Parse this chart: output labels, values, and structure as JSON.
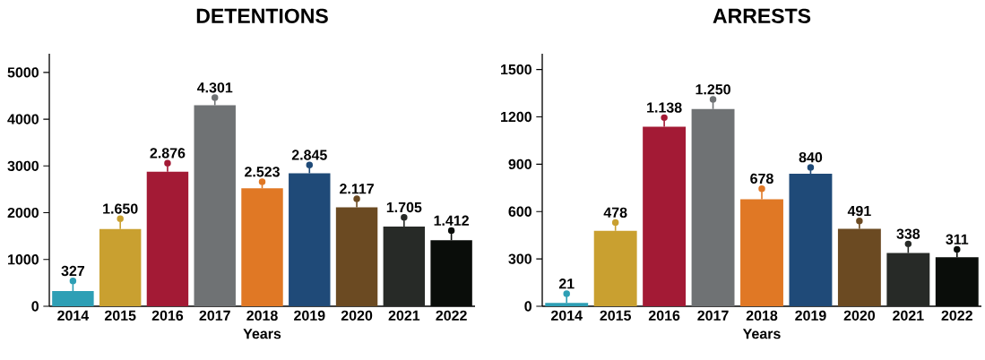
{
  "chart_data": [
    {
      "type": "bar",
      "title": "DETENTIONS",
      "xlabel": "Years",
      "categories": [
        "2014",
        "2015",
        "2016",
        "2017",
        "2018",
        "2019",
        "2020",
        "2021",
        "2022"
      ],
      "values": [
        327,
        1650,
        2876,
        4301,
        2523,
        2845,
        2117,
        1705,
        1412
      ],
      "value_labels": [
        "327",
        "1.650",
        "2.876",
        "4.301",
        "2.523",
        "2.845",
        "2.117",
        "1.705",
        "1.412"
      ],
      "errors": [
        [
          327,
          540
        ],
        [
          1650,
          1870
        ],
        [
          2876,
          3060
        ],
        [
          4301,
          4460
        ],
        [
          2523,
          2660
        ],
        [
          2845,
          3020
        ],
        [
          2117,
          2300
        ],
        [
          1705,
          1900
        ],
        [
          1412,
          1620
        ]
      ],
      "colors": [
        "#2e9fb5",
        "#c9a030",
        "#a31a35",
        "#6f7274",
        "#e07825",
        "#1f4a78",
        "#6b4a22",
        "#272a27",
        "#0a0d0a"
      ],
      "ylim": [
        0,
        5400
      ],
      "yticks": [
        0,
        1000,
        2000,
        3000,
        4000,
        5000
      ],
      "grid": false
    },
    {
      "type": "bar",
      "title": "ARRESTS",
      "xlabel": "Years",
      "categories": [
        "2014",
        "2015",
        "2016",
        "2017",
        "2018",
        "2019",
        "2020",
        "2021",
        "2022"
      ],
      "values": [
        21,
        478,
        1138,
        1250,
        678,
        840,
        491,
        338,
        311
      ],
      "value_labels": [
        "21",
        "478",
        "1.138",
        "1.250",
        "678",
        "840",
        "491",
        "338",
        "311"
      ],
      "errors": [
        [
          21,
          80
        ],
        [
          478,
          530
        ],
        [
          1138,
          1195
        ],
        [
          1250,
          1310
        ],
        [
          678,
          745
        ],
        [
          840,
          880
        ],
        [
          491,
          540
        ],
        [
          338,
          395
        ],
        [
          311,
          360
        ]
      ],
      "colors": [
        "#2e9fb5",
        "#c9a030",
        "#a31a35",
        "#6f7274",
        "#e07825",
        "#1f4a78",
        "#6b4a22",
        "#272a27",
        "#0a0d0a"
      ],
      "ylim": [
        0,
        1600
      ],
      "yticks": [
        0,
        300,
        600,
        900,
        1200,
        1500
      ],
      "grid": false
    }
  ]
}
